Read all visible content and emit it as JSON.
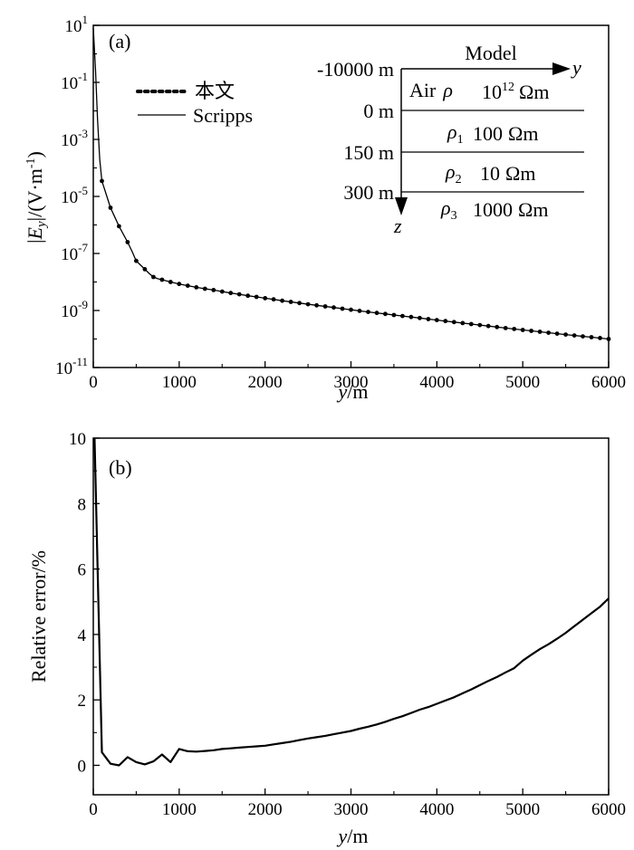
{
  "chart_data": [
    {
      "type": "line",
      "panel_label": "(a)",
      "xlabel_var": "y",
      "xlabel_unit": "/m",
      "ylabel": "|E_y|/(V·m^-1)",
      "xlim": [
        0,
        6000
      ],
      "ylim": [
        1e-11,
        10
      ],
      "yscale": "log",
      "x_ticks": [
        "0",
        "1000",
        "2000",
        "3000",
        "4000",
        "5000",
        "6000"
      ],
      "y_ticks": [
        {
          "base": "10",
          "exp": "1"
        },
        {
          "base": "10",
          "exp": "-1"
        },
        {
          "base": "10",
          "exp": "-3"
        },
        {
          "base": "10",
          "exp": "-5"
        },
        {
          "base": "10",
          "exp": "-7"
        },
        {
          "base": "10",
          "exp": "-9"
        },
        {
          "base": "10",
          "exp": "-11"
        }
      ],
      "legend": [
        {
          "name": "本文",
          "style": "dotted"
        },
        {
          "name": "Scripps",
          "style": "solid"
        }
      ],
      "series": [
        {
          "name": "本文",
          "x": [
            100,
            200,
            300,
            400,
            500,
            600,
            700,
            800,
            900,
            1000,
            1100,
            1200,
            1300,
            1400,
            1500,
            1600,
            1700,
            1800,
            1900,
            2000,
            2100,
            2200,
            2300,
            2400,
            2500,
            2600,
            2700,
            2800,
            2900,
            3000,
            3100,
            3200,
            3300,
            3400,
            3500,
            3600,
            3700,
            3800,
            3900,
            4000,
            4100,
            4200,
            4300,
            4400,
            4500,
            4600,
            4700,
            4800,
            4900,
            5000,
            5100,
            5200,
            5300,
            5400,
            5500,
            5600,
            5700,
            5800,
            5900,
            6000
          ],
          "values": [
            3.5e-05,
            4e-06,
            9e-07,
            2.5e-07,
            5.5e-08,
            2.8e-08,
            1.5e-08,
            1.2e-08,
            1e-08,
            8.5e-09,
            7.4e-09,
            6.5e-09,
            5.8e-09,
            5.2e-09,
            4.6e-09,
            4.1e-09,
            3.7e-09,
            3.3e-09,
            3e-09,
            2.7e-09,
            2.45e-09,
            2.2e-09,
            2e-09,
            1.82e-09,
            1.66e-09,
            1.52e-09,
            1.39e-09,
            1.27e-09,
            1.16e-09,
            1.06e-09,
            9.7e-10,
            8.9e-10,
            8.2e-10,
            7.55e-10,
            6.95e-10,
            6.4e-10,
            5.9e-10,
            5.45e-10,
            5e-10,
            4.6e-10,
            4.25e-10,
            3.92e-10,
            3.62e-10,
            3.34e-10,
            3.08e-10,
            2.85e-10,
            2.63e-10,
            2.43e-10,
            2.25e-10,
            2.08e-10,
            1.93e-10,
            1.79e-10,
            1.66e-10,
            1.54e-10,
            1.43e-10,
            1.33e-10,
            1.24e-10,
            1.16e-10,
            1.08e-10,
            1e-10
          ]
        },
        {
          "name": "Scripps",
          "x": [
            0,
            25,
            50,
            75,
            100,
            150,
            200,
            250,
            300,
            350,
            400,
            450,
            500,
            550,
            600,
            650,
            700,
            750,
            800,
            850,
            900,
            950,
            1000,
            1100,
            1200,
            1300,
            1400,
            1500,
            1600,
            1700,
            1800,
            1900,
            2000,
            2200,
            2400,
            2600,
            2800,
            3000,
            3200,
            3400,
            3600,
            3800,
            4000,
            4200,
            4400,
            4600,
            4800,
            5000,
            5200,
            5400,
            5600,
            5800,
            6000
          ],
          "values": [
            8,
            0.3,
            0.005,
            0.0002,
            3.5e-05,
            1.2e-05,
            4e-06,
            1.9e-06,
            9e-07,
            4.7e-07,
            2.5e-07,
            1.2e-07,
            5.5e-08,
            3.9e-08,
            2.8e-08,
            2e-08,
            1.5e-08,
            1.3e-08,
            1.2e-08,
            1.1e-08,
            1e-08,
            9.2e-09,
            8.5e-09,
            7.4e-09,
            6.5e-09,
            5.8e-09,
            5.2e-09,
            4.6e-09,
            4.1e-09,
            3.7e-09,
            3.3e-09,
            3e-09,
            2.7e-09,
            2.2e-09,
            1.82e-09,
            1.52e-09,
            1.27e-09,
            1.06e-09,
            8.9e-10,
            7.55e-10,
            6.4e-10,
            5.45e-10,
            4.6e-10,
            3.92e-10,
            3.34e-10,
            2.85e-10,
            2.43e-10,
            2.08e-10,
            1.79e-10,
            1.54e-10,
            1.33e-10,
            1.16e-10,
            1e-10
          ]
        }
      ],
      "inset": {
        "title": "Model",
        "axis_y": "y",
        "axis_z": "z",
        "depths": [
          "-10000 m",
          "0 m",
          "150 m",
          "300 m"
        ],
        "layers": [
          {
            "name": "Air",
            "symbol": "ρ",
            "subscript": "",
            "base": "10",
            "exp": "12",
            "unit": "Ωm"
          },
          {
            "name": "",
            "symbol": "ρ",
            "subscript": "1",
            "base": "100",
            "exp": "",
            "unit": "Ωm"
          },
          {
            "name": "",
            "symbol": "ρ",
            "subscript": "2",
            "base": "10",
            "exp": "",
            "unit": "Ωm"
          },
          {
            "name": "",
            "symbol": "ρ",
            "subscript": "3",
            "base": "1000",
            "exp": "",
            "unit": "Ωm"
          }
        ]
      }
    },
    {
      "type": "line",
      "panel_label": "(b)",
      "xlabel_var": "y",
      "xlabel_unit": "/m",
      "ylabel": "Relative error/%",
      "xlim": [
        0,
        6000
      ],
      "ylim": [
        -0.9,
        10
      ],
      "x_ticks": [
        "0",
        "1000",
        "2000",
        "3000",
        "4000",
        "5000",
        "6000"
      ],
      "y_ticks": [
        "0",
        "2",
        "4",
        "6",
        "8",
        "10"
      ],
      "series": [
        {
          "name": "Relative error",
          "x": [
            15,
            100,
            200,
            300,
            400,
            500,
            600,
            700,
            800,
            900,
            1000,
            1100,
            1200,
            1300,
            1400,
            1500,
            1600,
            1700,
            1800,
            1900,
            2000,
            2100,
            2200,
            2300,
            2400,
            2500,
            2600,
            2700,
            2800,
            2900,
            3000,
            3100,
            3200,
            3300,
            3400,
            3500,
            3600,
            3700,
            3800,
            3900,
            4000,
            4100,
            4200,
            4300,
            4400,
            4500,
            4600,
            4700,
            4800,
            4900,
            5000,
            5100,
            5200,
            5300,
            5400,
            5500,
            5600,
            5700,
            5800,
            5900,
            6000
          ],
          "values": [
            10.5,
            0.4,
            0.05,
            0.0,
            0.25,
            0.1,
            0.03,
            0.12,
            0.33,
            0.1,
            0.5,
            0.43,
            0.42,
            0.44,
            0.46,
            0.5,
            0.52,
            0.54,
            0.56,
            0.58,
            0.6,
            0.64,
            0.68,
            0.72,
            0.77,
            0.82,
            0.86,
            0.9,
            0.95,
            1.0,
            1.05,
            1.12,
            1.18,
            1.25,
            1.33,
            1.42,
            1.5,
            1.6,
            1.7,
            1.78,
            1.88,
            1.98,
            2.08,
            2.2,
            2.32,
            2.45,
            2.58,
            2.7,
            2.84,
            2.97,
            3.2,
            3.38,
            3.55,
            3.7,
            3.87,
            4.05,
            4.25,
            4.45,
            4.65,
            4.85,
            5.1
          ]
        }
      ]
    }
  ]
}
